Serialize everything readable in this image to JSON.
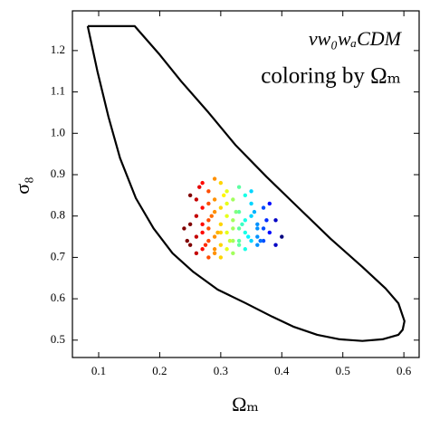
{
  "chart_data": {
    "type": "scatter",
    "title": "νw₀wₐCDM",
    "subtitle": "coloring by Ωₘ",
    "x_label": "Ωₘ",
    "y_label": "σ₈",
    "xlim": [
      0.057,
      0.625
    ],
    "ylim": [
      0.458,
      1.296
    ],
    "xticks": [
      0.1,
      0.2,
      0.3,
      0.4,
      0.5,
      0.6
    ],
    "yticks": [
      0.5,
      0.6,
      0.7,
      0.8,
      0.9,
      {
        "value": 1,
        "label": "1.0"
      },
      1.1,
      1.2
    ],
    "colormap": "jet_r",
    "color_range": [
      0.25,
      0.4
    ],
    "contour": {
      "color": "#000000",
      "x": [
        0.082,
        0.159,
        0.2,
        0.235,
        0.28,
        0.324,
        0.375,
        0.428,
        0.48,
        0.532,
        0.57,
        0.591,
        0.601,
        0.598,
        0.591,
        0.565,
        0.532,
        0.495,
        0.458,
        0.42,
        0.384,
        0.34,
        0.295,
        0.255,
        0.221,
        0.19,
        0.161,
        0.135,
        0.116,
        0.098,
        0.082
      ],
      "y": [
        1.259,
        1.259,
        1.19,
        1.126,
        1.05,
        0.972,
        0.895,
        0.819,
        0.745,
        0.677,
        0.625,
        0.589,
        0.546,
        0.525,
        0.513,
        0.502,
        0.498,
        0.502,
        0.513,
        0.532,
        0.557,
        0.59,
        0.622,
        0.665,
        0.71,
        0.77,
        0.843,
        0.94,
        1.04,
        1.15,
        1.259
      ]
    },
    "series": [
      {
        "x": [
          0.25,
          0.25,
          0.26,
          0.26,
          0.26,
          0.27,
          0.27,
          0.27,
          0.27,
          0.28,
          0.28,
          0.28,
          0.28,
          0.28,
          0.29,
          0.29,
          0.29,
          0.29,
          0.29,
          0.3,
          0.3,
          0.3,
          0.3,
          0.3,
          0.31,
          0.31,
          0.31,
          0.31,
          0.32,
          0.32,
          0.32,
          0.32,
          0.33,
          0.33,
          0.33,
          0.33,
          0.34,
          0.34,
          0.34,
          0.35,
          0.35,
          0.35,
          0.36,
          0.36,
          0.36,
          0.37,
          0.37,
          0.37,
          0.38,
          0.38,
          0.39,
          0.39,
          0.4,
          0.25,
          0.26,
          0.27,
          0.28,
          0.29,
          0.3,
          0.31,
          0.32,
          0.33,
          0.34,
          0.35,
          0.36,
          0.24,
          0.245,
          0.265,
          0.275,
          0.285,
          0.295,
          0.305,
          0.315,
          0.325,
          0.335,
          0.345,
          0.355,
          0.365,
          0.375
        ],
        "values": [
          0.78,
          0.73,
          0.84,
          0.71,
          0.8,
          0.88,
          0.76,
          0.72,
          0.82,
          0.79,
          0.74,
          0.86,
          0.7,
          0.77,
          0.89,
          0.81,
          0.75,
          0.71,
          0.84,
          0.88,
          0.78,
          0.73,
          0.82,
          0.7,
          0.86,
          0.76,
          0.72,
          0.8,
          0.84,
          0.74,
          0.79,
          0.71,
          0.87,
          0.77,
          0.73,
          0.81,
          0.85,
          0.76,
          0.72,
          0.8,
          0.74,
          0.83,
          0.78,
          0.73,
          0.75,
          0.77,
          0.82,
          0.74,
          0.76,
          0.83,
          0.79,
          0.73,
          0.75,
          0.85,
          0.75,
          0.78,
          0.83,
          0.72,
          0.76,
          0.83,
          0.77,
          0.74,
          0.79,
          0.86,
          0.77,
          0.77,
          0.74,
          0.87,
          0.73,
          0.8,
          0.76,
          0.85,
          0.74,
          0.81,
          0.78,
          0.75,
          0.81,
          0.74,
          0.79
        ]
      }
    ]
  }
}
